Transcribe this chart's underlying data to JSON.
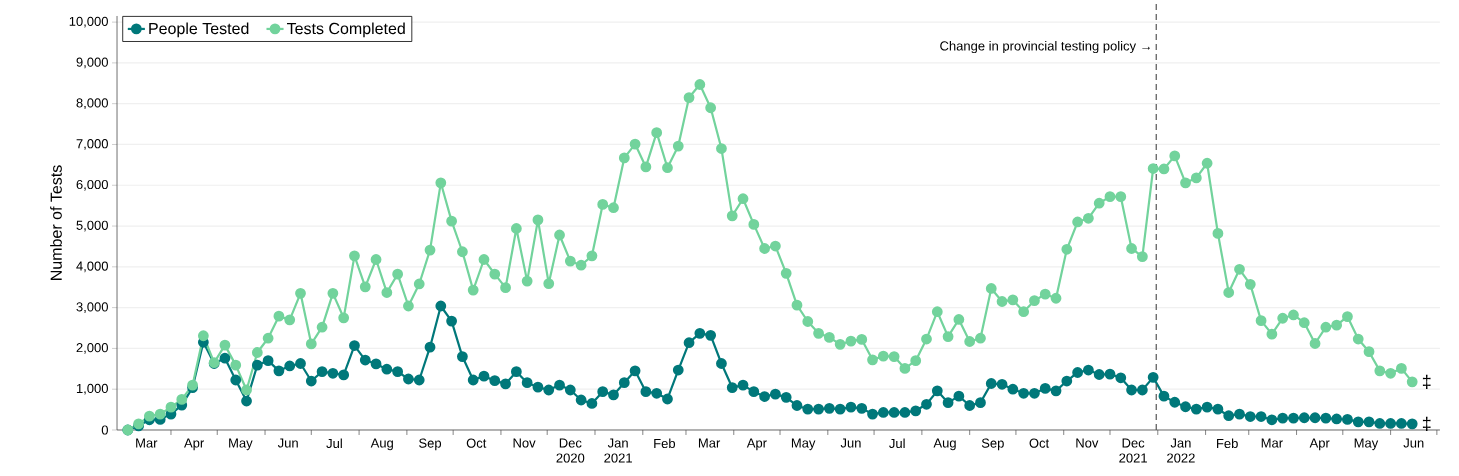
{
  "chart_data": {
    "type": "line",
    "ylabel": "Number of Tests",
    "x": [
      "2020-03-04",
      "2020-03-11",
      "2020-03-18",
      "2020-03-25",
      "2020-04-01",
      "2020-04-08",
      "2020-04-15",
      "2020-04-22",
      "2020-04-29",
      "2020-05-06",
      "2020-05-13",
      "2020-05-20",
      "2020-05-27",
      "2020-06-03",
      "2020-06-10",
      "2020-06-17",
      "2020-06-24",
      "2020-07-01",
      "2020-07-08",
      "2020-07-15",
      "2020-07-22",
      "2020-07-29",
      "2020-08-05",
      "2020-08-12",
      "2020-08-19",
      "2020-08-26",
      "2020-09-02",
      "2020-09-09",
      "2020-09-16",
      "2020-09-23",
      "2020-09-30",
      "2020-10-07",
      "2020-10-14",
      "2020-10-21",
      "2020-10-28",
      "2020-11-04",
      "2020-11-11",
      "2020-11-18",
      "2020-11-25",
      "2020-12-02",
      "2020-12-09",
      "2020-12-16",
      "2020-12-23",
      "2020-12-30",
      "2021-01-06",
      "2021-01-13",
      "2021-01-20",
      "2021-01-27",
      "2021-02-03",
      "2021-02-10",
      "2021-02-17",
      "2021-02-24",
      "2021-03-03",
      "2021-03-10",
      "2021-03-17",
      "2021-03-24",
      "2021-03-31",
      "2021-04-07",
      "2021-04-14",
      "2021-04-21",
      "2021-04-28",
      "2021-05-05",
      "2021-05-12",
      "2021-05-19",
      "2021-05-26",
      "2021-06-02",
      "2021-06-09",
      "2021-06-16",
      "2021-06-23",
      "2021-06-30",
      "2021-07-07",
      "2021-07-14",
      "2021-07-21",
      "2021-07-28",
      "2021-08-04",
      "2021-08-11",
      "2021-08-18",
      "2021-08-25",
      "2021-09-01",
      "2021-09-08",
      "2021-09-15",
      "2021-09-22",
      "2021-09-29",
      "2021-10-06",
      "2021-10-13",
      "2021-10-20",
      "2021-10-27",
      "2021-11-03",
      "2021-11-10",
      "2021-11-17",
      "2021-11-24",
      "2021-12-01",
      "2021-12-08",
      "2021-12-15",
      "2021-12-22",
      "2021-12-29",
      "2022-01-05",
      "2022-01-12",
      "2022-01-19",
      "2022-01-26",
      "2022-02-02",
      "2022-02-09",
      "2022-02-16",
      "2022-02-23",
      "2022-03-02",
      "2022-03-09",
      "2022-03-16",
      "2022-03-23",
      "2022-03-30",
      "2022-04-06",
      "2022-04-13",
      "2022-04-20",
      "2022-04-27",
      "2022-05-04",
      "2022-05-11",
      "2022-05-18",
      "2022-05-25",
      "2022-06-01",
      "2022-06-08",
      "2022-06-15"
    ],
    "series": [
      {
        "name": "People Tested",
        "color": "#00787a",
        "values": [
          0,
          100,
          250,
          260,
          390,
          610,
          1040,
          2150,
          1630,
          1760,
          1225,
          710,
          1590,
          1700,
          1450,
          1570,
          1630,
          1200,
          1430,
          1390,
          1350,
          2070,
          1715,
          1620,
          1490,
          1430,
          1250,
          1225,
          2030,
          3040,
          2670,
          1800,
          1225,
          1320,
          1210,
          1130,
          1430,
          1160,
          1050,
          980,
          1100,
          980,
          735,
          650,
          940,
          860,
          1160,
          1450,
          940,
          900,
          760,
          1470,
          2140,
          2370,
          2320,
          1630,
          1040,
          1100,
          940,
          820,
          880,
          800,
          600,
          510,
          510,
          530,
          510,
          560,
          530,
          390,
          430,
          430,
          430,
          470,
          630,
          960,
          670,
          830,
          600,
          670,
          1140,
          1120,
          1000,
          900,
          900,
          1020,
          960,
          1200,
          1410,
          1470,
          1360,
          1370,
          1280,
          980,
          980,
          1290,
          830,
          680,
          570,
          510,
          560,
          510,
          350,
          390,
          330,
          330,
          250,
          290,
          290,
          300,
          300,
          290,
          270,
          260,
          200,
          200,
          160,
          160,
          160,
          150
        ]
      },
      {
        "name": "Tests Completed",
        "color": "#72d39c",
        "values": [
          0,
          150,
          340,
          390,
          560,
          750,
          1100,
          2310,
          1650,
          2080,
          1590,
          980,
          1900,
          2250,
          2790,
          2700,
          3350,
          2110,
          2520,
          3350,
          2750,
          4270,
          3510,
          4180,
          3370,
          3820,
          3040,
          3580,
          4410,
          6060,
          5120,
          4370,
          3430,
          4180,
          3820,
          3490,
          4940,
          3650,
          5150,
          3590,
          4780,
          4140,
          4040,
          4270,
          5530,
          5450,
          6670,
          7010,
          6450,
          7290,
          6430,
          6960,
          8150,
          8470,
          7900,
          6900,
          5250,
          5670,
          5040,
          4450,
          4510,
          3840,
          3060,
          2660,
          2370,
          2270,
          2100,
          2180,
          2220,
          1720,
          1810,
          1800,
          1510,
          1700,
          2230,
          2900,
          2290,
          2710,
          2170,
          2250,
          3470,
          3150,
          3190,
          2900,
          3170,
          3330,
          3230,
          4430,
          5100,
          5190,
          5560,
          5720,
          5720,
          4450,
          4250,
          6410,
          6400,
          6720,
          6060,
          6180,
          6540,
          4820,
          3370,
          3940,
          3570,
          2680,
          2350,
          2740,
          2820,
          2630,
          2120,
          2520,
          2570,
          2780,
          2230,
          1920,
          1450,
          1390,
          1510,
          1180
        ]
      }
    ],
    "xlim": [
      "2020-02-26",
      "2022-07-03"
    ],
    "xticks": [
      {
        "value": "2020-03-16",
        "label": "Mar"
      },
      {
        "value": "2020-04-01",
        "label": null
      },
      {
        "value": "2020-04-16",
        "label": "Apr"
      },
      {
        "value": "2020-05-01",
        "label": null
      },
      {
        "value": "2020-05-16",
        "label": "May"
      },
      {
        "value": "2020-06-01",
        "label": null
      },
      {
        "value": "2020-06-16",
        "label": "Jun"
      },
      {
        "value": "2020-07-01",
        "label": null
      },
      {
        "value": "2020-07-16",
        "label": "Jul"
      },
      {
        "value": "2020-08-01",
        "label": null
      },
      {
        "value": "2020-08-16",
        "label": "Aug"
      },
      {
        "value": "2020-09-01",
        "label": null
      },
      {
        "value": "2020-09-16",
        "label": "Sep"
      },
      {
        "value": "2020-10-01",
        "label": null
      },
      {
        "value": "2020-10-16",
        "label": "Oct"
      },
      {
        "value": "2020-11-01",
        "label": null
      },
      {
        "value": "2020-11-16",
        "label": "Nov"
      },
      {
        "value": "2020-12-01",
        "label": null
      },
      {
        "value": "2020-12-16",
        "label": "Dec 2020"
      },
      {
        "value": "2021-01-01",
        "label": null
      },
      {
        "value": "2021-01-16",
        "label": "Jan 2021"
      },
      {
        "value": "2021-02-01",
        "label": null
      },
      {
        "value": "2021-02-15",
        "label": "Feb"
      },
      {
        "value": "2021-03-01",
        "label": null
      },
      {
        "value": "2021-03-16",
        "label": "Mar"
      },
      {
        "value": "2021-04-01",
        "label": null
      },
      {
        "value": "2021-04-16",
        "label": "Apr"
      },
      {
        "value": "2021-05-01",
        "label": null
      },
      {
        "value": "2021-05-16",
        "label": "May"
      },
      {
        "value": "2021-06-01",
        "label": null
      },
      {
        "value": "2021-06-16",
        "label": "Jun"
      },
      {
        "value": "2021-07-01",
        "label": null
      },
      {
        "value": "2021-07-16",
        "label": "Jul"
      },
      {
        "value": "2021-08-01",
        "label": null
      },
      {
        "value": "2021-08-16",
        "label": "Aug"
      },
      {
        "value": "2021-09-01",
        "label": null
      },
      {
        "value": "2021-09-16",
        "label": "Sep"
      },
      {
        "value": "2021-10-01",
        "label": null
      },
      {
        "value": "2021-10-16",
        "label": "Oct"
      },
      {
        "value": "2021-11-01",
        "label": null
      },
      {
        "value": "2021-11-16",
        "label": "Nov"
      },
      {
        "value": "2021-12-01",
        "label": null
      },
      {
        "value": "2021-12-16",
        "label": "Dec 2021"
      },
      {
        "value": "2022-01-01",
        "label": null
      },
      {
        "value": "2022-01-16",
        "label": "Jan 2022"
      },
      {
        "value": "2022-02-01",
        "label": null
      },
      {
        "value": "2022-02-15",
        "label": "Feb"
      },
      {
        "value": "2022-03-01",
        "label": null
      },
      {
        "value": "2022-03-16",
        "label": "Mar"
      },
      {
        "value": "2022-04-01",
        "label": null
      },
      {
        "value": "2022-04-16",
        "label": "Apr"
      },
      {
        "value": "2022-05-01",
        "label": null
      },
      {
        "value": "2022-05-16",
        "label": "May"
      },
      {
        "value": "2022-06-01",
        "label": null
      },
      {
        "value": "2022-06-16",
        "label": "Jun"
      },
      {
        "value": "2022-07-01",
        "label": null
      }
    ],
    "ylim": [
      0,
      10150
    ],
    "yticks": [
      0,
      {
        "value": 1000,
        "label": "1,000"
      },
      {
        "value": 2000,
        "label": "2,000"
      },
      {
        "value": 3000,
        "label": "3,000"
      },
      {
        "value": 4000,
        "label": "4,000"
      },
      {
        "value": 5000,
        "label": "5,000"
      },
      {
        "value": 6000,
        "label": "6,000"
      },
      {
        "value": 7000,
        "label": "7,000"
      },
      {
        "value": 8000,
        "label": "8,000"
      },
      {
        "value": 9000,
        "label": "9,000"
      },
      {
        "value": 10000,
        "label": "10,000"
      }
    ],
    "ref_lines": [
      {
        "axis": "x",
        "value": "2021-12-31",
        "label": "Change in provincial testing policy →",
        "color": "#555555",
        "line_style": "dashed"
      }
    ],
    "annotations": [
      {
        "text": "‡",
        "x": "2022-06-15",
        "y": 1180
      },
      {
        "text": "‡",
        "x": "2022-06-15",
        "y": 150
      }
    ],
    "grid": "y",
    "legend": "top left",
    "marker": "circle",
    "line_style": "solid"
  }
}
